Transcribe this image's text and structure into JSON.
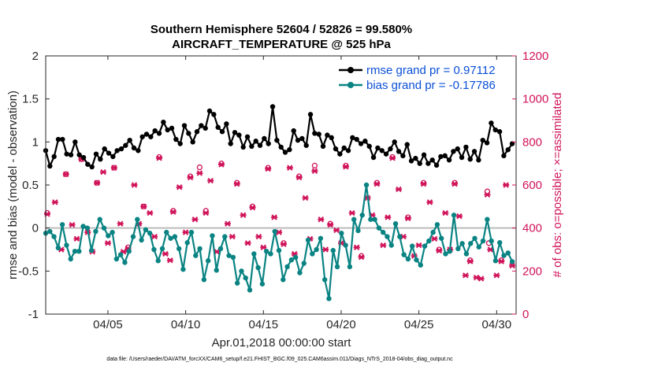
{
  "chart_data": {
    "type": "line",
    "title": "Southern Hemisphere 52604 / 52826 = 99.580%",
    "subtitle": "AIRCRAFT_TEMPERATURE @ 525 hPa",
    "xlabel": "Apr.01,2018 00:00:00 start",
    "ylabel": "rmse and bias (model - observation)",
    "ylabel_right": "# of obs: o=possible; ×=assimilated",
    "xlim": [
      1,
      31.25
    ],
    "ylim": [
      -1,
      2
    ],
    "ylim_right": [
      0,
      1200
    ],
    "x_ticks": [
      5,
      10,
      15,
      20,
      25,
      30
    ],
    "x_tick_labels": [
      "04/05",
      "04/10",
      "04/15",
      "04/20",
      "04/25",
      "04/30"
    ],
    "y_ticks": [
      -1,
      -0.5,
      0,
      0.5,
      1,
      1.5,
      2
    ],
    "y_tick_labels": [
      "-1",
      "-0.5",
      "0",
      "0.5",
      "1",
      "1.5",
      "2"
    ],
    "y_ticks_right": [
      0,
      200,
      400,
      600,
      800,
      1000,
      1200
    ],
    "y_tick_labels_right": [
      "0",
      "200",
      "400",
      "600",
      "800",
      "1000",
      "1200"
    ],
    "zero_line": 0,
    "legend_position": "top-right",
    "series": [
      {
        "name": "rmse grand pr = 0.97112",
        "color": "#000000",
        "marker": "filled-circle",
        "values": [
          0.9,
          0.72,
          0.83,
          1.03,
          1.03,
          0.86,
          0.85,
          1.0,
          0.85,
          0.82,
          0.74,
          0.71,
          0.86,
          0.8,
          0.92,
          0.87,
          0.83,
          0.9,
          0.92,
          0.96,
          1.02,
          0.93,
          0.9,
          1.06,
          1.09,
          1.06,
          1.13,
          1.1,
          1.23,
          1.14,
          1.16,
          1.03,
          0.98,
          1.19,
          1.1,
          1.0,
          1.12,
          1.19,
          1.16,
          1.36,
          1.32,
          1.17,
          1.12,
          1.21,
          0.98,
          1.11,
          1.08,
          0.94,
          1.06,
          0.95,
          1.01,
          0.96,
          1.04,
          0.98,
          1.41,
          1.02,
          0.94,
          0.88,
          0.91,
          1.13,
          1.02,
          1.04,
          0.96,
          1.32,
          1.1,
          1.09,
          0.95,
          1.08,
          1.05,
          0.92,
          0.86,
          0.93,
          0.9,
          1.05,
          1.03,
          0.98,
          1.01,
          0.95,
          0.82,
          0.93,
          0.9,
          0.86,
          0.92,
          1.0,
          0.89,
          0.84,
          0.97,
          0.78,
          0.81,
          0.75,
          0.85,
          0.75,
          0.79,
          0.73,
          0.83,
          0.84,
          0.79,
          0.89,
          0.92,
          0.82,
          0.94,
          0.8,
          0.89,
          0.79,
          1.02,
          0.99,
          1.22,
          1.14,
          1.12,
          0.84,
          0.91,
          0.98
        ]
      },
      {
        "name": "bias grand pr = -0.17786",
        "color": "#0a8383",
        "marker": "filled-circle",
        "values": [
          -0.06,
          -0.04,
          -0.1,
          -0.23,
          0.04,
          -0.2,
          -0.36,
          -0.27,
          -0.27,
          0.02,
          0.0,
          -0.26,
          -0.04,
          0.1,
          0.0,
          -0.09,
          -0.05,
          -0.36,
          -0.31,
          -0.4,
          -0.27,
          -0.1,
          0.1,
          -0.14,
          -0.02,
          -0.06,
          -0.25,
          -0.38,
          -0.24,
          -0.05,
          -0.12,
          -0.1,
          -0.24,
          -0.48,
          -0.17,
          -0.05,
          -0.32,
          -0.24,
          -0.6,
          -0.38,
          -0.09,
          -0.49,
          -0.24,
          -0.1,
          -0.32,
          -0.34,
          -0.64,
          -0.5,
          -0.58,
          -0.72,
          -0.3,
          -0.46,
          -0.65,
          -0.27,
          -0.3,
          -0.04,
          -0.26,
          -0.6,
          -0.45,
          -0.37,
          -0.34,
          -0.52,
          -0.41,
          -0.14,
          -0.3,
          -0.25,
          -0.12,
          -0.6,
          -0.82,
          -0.26,
          -0.45,
          -0.06,
          -0.2,
          -0.45,
          0.1,
          -0.03,
          0.15,
          0.5,
          0.1,
          0.1,
          0.0,
          -0.05,
          -0.1,
          -0.2,
          0.05,
          -0.1,
          -0.31,
          -0.36,
          -0.21,
          -0.37,
          -0.43,
          -0.21,
          -0.15,
          -0.05,
          0.04,
          -0.12,
          -0.3,
          -0.27,
          0.15,
          -0.24,
          -0.18,
          -0.3,
          -0.18,
          -0.12,
          -0.22,
          -0.15,
          0.1,
          -0.15,
          -0.38,
          -0.17,
          -0.32,
          -0.29,
          -0.39
        ]
      }
    ],
    "obs_possible": [
      {
        "x": 1.1,
        "y": 470
      },
      {
        "x": 2.3,
        "y": 650
      },
      {
        "x": 3.3,
        "y": 720
      },
      {
        "x": 4.3,
        "y": 610
      },
      {
        "x": 5.4,
        "y": 680
      },
      {
        "x": 6.3,
        "y": 310
      },
      {
        "x": 7.3,
        "y": 500
      },
      {
        "x": 8.3,
        "y": 730
      },
      {
        "x": 9.2,
        "y": 480
      },
      {
        "x": 10.3,
        "y": 640
      },
      {
        "x": 10.9,
        "y": 682
      },
      {
        "x": 11.3,
        "y": 480
      },
      {
        "x": 12.3,
        "y": 700
      },
      {
        "x": 13.3,
        "y": 610
      },
      {
        "x": 14.3,
        "y": 500
      },
      {
        "x": 15.3,
        "y": 680
      },
      {
        "x": 16.3,
        "y": 330
      },
      {
        "x": 17.3,
        "y": 640
      },
      {
        "x": 18.3,
        "y": 690
      },
      {
        "x": 19.3,
        "y": 420
      },
      {
        "x": 20.3,
        "y": 690
      },
      {
        "x": 21.3,
        "y": 270
      },
      {
        "x": 22.3,
        "y": 610
      },
      {
        "x": 23.3,
        "y": 730
      },
      {
        "x": 24.3,
        "y": 450
      },
      {
        "x": 25.3,
        "y": 610
      },
      {
        "x": 26.3,
        "y": 300
      },
      {
        "x": 27.3,
        "y": 610
      },
      {
        "x": 28.3,
        "y": 250
      },
      {
        "x": 29.4,
        "y": 570
      },
      {
        "x": 29.5,
        "y": 330
      },
      {
        "x": 30.3,
        "y": 250
      }
    ],
    "obs_assimilated": [
      {
        "x": 1.1,
        "y": 465
      },
      {
        "x": 1.6,
        "y": 520
      },
      {
        "x": 2.0,
        "y": 300
      },
      {
        "x": 2.3,
        "y": 650
      },
      {
        "x": 2.7,
        "y": 415
      },
      {
        "x": 3.0,
        "y": 350
      },
      {
        "x": 3.3,
        "y": 720
      },
      {
        "x": 3.7,
        "y": 380
      },
      {
        "x": 4.0,
        "y": 290
      },
      {
        "x": 4.3,
        "y": 610
      },
      {
        "x": 4.7,
        "y": 660
      },
      {
        "x": 5.0,
        "y": 330
      },
      {
        "x": 5.4,
        "y": 680
      },
      {
        "x": 5.8,
        "y": 420
      },
      {
        "x": 6.0,
        "y": 290
      },
      {
        "x": 6.3,
        "y": 305
      },
      {
        "x": 6.7,
        "y": 600
      },
      {
        "x": 7.0,
        "y": 420
      },
      {
        "x": 7.3,
        "y": 500
      },
      {
        "x": 7.7,
        "y": 470
      },
      {
        "x": 8.0,
        "y": 360
      },
      {
        "x": 8.3,
        "y": 725
      },
      {
        "x": 8.7,
        "y": 280
      },
      {
        "x": 9.0,
        "y": 250
      },
      {
        "x": 9.2,
        "y": 475
      },
      {
        "x": 9.6,
        "y": 590
      },
      {
        "x": 10.0,
        "y": 380
      },
      {
        "x": 10.3,
        "y": 635
      },
      {
        "x": 10.6,
        "y": 440
      },
      {
        "x": 10.9,
        "y": 655
      },
      {
        "x": 11.3,
        "y": 470
      },
      {
        "x": 11.6,
        "y": 620
      },
      {
        "x": 12.0,
        "y": 290
      },
      {
        "x": 12.3,
        "y": 695
      },
      {
        "x": 12.7,
        "y": 420
      },
      {
        "x": 13.0,
        "y": 360
      },
      {
        "x": 13.3,
        "y": 605
      },
      {
        "x": 13.7,
        "y": 460
      },
      {
        "x": 14.0,
        "y": 330
      },
      {
        "x": 14.3,
        "y": 495
      },
      {
        "x": 14.7,
        "y": 360
      },
      {
        "x": 15.0,
        "y": 310
      },
      {
        "x": 15.3,
        "y": 675
      },
      {
        "x": 15.7,
        "y": 450
      },
      {
        "x": 16.0,
        "y": 380
      },
      {
        "x": 16.3,
        "y": 325
      },
      {
        "x": 16.7,
        "y": 680
      },
      {
        "x": 17.0,
        "y": 280
      },
      {
        "x": 17.3,
        "y": 635
      },
      {
        "x": 17.7,
        "y": 540
      },
      {
        "x": 18.0,
        "y": 350
      },
      {
        "x": 18.3,
        "y": 665
      },
      {
        "x": 18.7,
        "y": 440
      },
      {
        "x": 19.0,
        "y": 300
      },
      {
        "x": 19.3,
        "y": 415
      },
      {
        "x": 19.7,
        "y": 390
      },
      {
        "x": 20.0,
        "y": 330
      },
      {
        "x": 20.3,
        "y": 685
      },
      {
        "x": 20.7,
        "y": 470
      },
      {
        "x": 21.0,
        "y": 310
      },
      {
        "x": 21.3,
        "y": 265
      },
      {
        "x": 21.7,
        "y": 540
      },
      {
        "x": 22.0,
        "y": 460
      },
      {
        "x": 22.3,
        "y": 605
      },
      {
        "x": 22.7,
        "y": 320
      },
      {
        "x": 23.0,
        "y": 450
      },
      {
        "x": 23.3,
        "y": 725
      },
      {
        "x": 23.7,
        "y": 580
      },
      {
        "x": 24.0,
        "y": 360
      },
      {
        "x": 24.3,
        "y": 445
      },
      {
        "x": 24.7,
        "y": 270
      },
      {
        "x": 25.0,
        "y": 320
      },
      {
        "x": 25.3,
        "y": 605
      },
      {
        "x": 25.7,
        "y": 520
      },
      {
        "x": 26.0,
        "y": 350
      },
      {
        "x": 26.3,
        "y": 295
      },
      {
        "x": 26.7,
        "y": 470
      },
      {
        "x": 27.0,
        "y": 300
      },
      {
        "x": 27.3,
        "y": 605
      },
      {
        "x": 27.6,
        "y": 455
      },
      {
        "x": 28.0,
        "y": 180
      },
      {
        "x": 28.3,
        "y": 245
      },
      {
        "x": 28.7,
        "y": 170
      },
      {
        "x": 29.0,
        "y": 165
      },
      {
        "x": 29.4,
        "y": 555
      },
      {
        "x": 29.6,
        "y": 300
      },
      {
        "x": 30.0,
        "y": 180
      },
      {
        "x": 30.3,
        "y": 245
      },
      {
        "x": 30.6,
        "y": 600
      },
      {
        "x": 31.0,
        "y": 225
      }
    ],
    "obs_color": "#d0145a"
  },
  "footer": "data file: /Users/raeder/DAI/ATM_forcXX/CAM6_setup/f.e21.FHIST_BGC.f09_025.CAM6assim.011/Diags_NTrS_2018-04/obs_diag_output.nc"
}
